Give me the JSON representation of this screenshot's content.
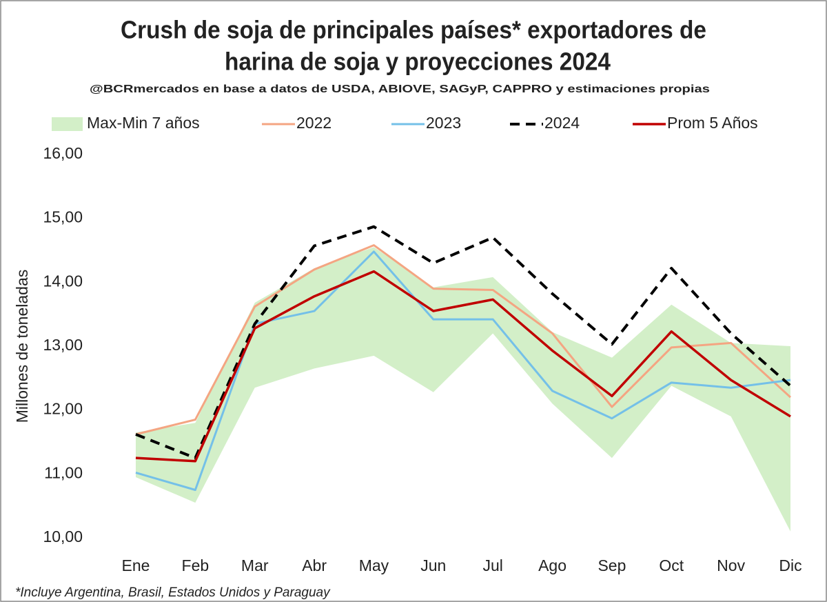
{
  "chart_data": {
    "type": "line",
    "title": [
      "Crush de soja de principales países* exportadores de",
      "harina de soja y proyecciones 2024"
    ],
    "subtitle": "@BCRmercados en base a datos de USDA, ABIOVE, SAGyP, CAPPRO y estimaciones propias",
    "y_label": "Millones de toneladas",
    "footnote": "*Incluye Argentina, Brasil, Estados Unidos y Paraguay",
    "categories": [
      "Ene",
      "Feb",
      "Mar",
      "Abr",
      "May",
      "Jun",
      "Jul",
      "Ago",
      "Sep",
      "Oct",
      "Nov",
      "Dic"
    ],
    "band": {
      "name": "Max-Min 7 años",
      "color": "#d3efc8",
      "upper": [
        11.65,
        11.8,
        13.68,
        14.22,
        14.55,
        13.92,
        14.08,
        13.22,
        12.82,
        13.65,
        13.05,
        13.0
      ],
      "lower": [
        10.95,
        10.55,
        12.35,
        12.65,
        12.85,
        12.28,
        13.2,
        12.1,
        11.25,
        12.38,
        11.9,
        10.1
      ]
    },
    "series": [
      {
        "name": "2022",
        "color": "#f4a582",
        "width": 3,
        "dashed": false,
        "values": [
          11.62,
          11.85,
          13.62,
          14.2,
          14.58,
          13.9,
          13.88,
          13.2,
          12.05,
          12.98,
          13.05,
          12.2
        ]
      },
      {
        "name": "2023",
        "color": "#74c0e8",
        "width": 3,
        "dashed": false,
        "values": [
          11.02,
          10.75,
          13.35,
          13.55,
          14.48,
          13.42,
          13.42,
          12.3,
          11.87,
          12.43,
          12.35,
          12.47
        ]
      },
      {
        "name": "2024",
        "color": "#000000",
        "width": 4,
        "dashed": true,
        "values": [
          11.62,
          11.25,
          13.35,
          14.57,
          14.87,
          14.3,
          14.7,
          13.82,
          13.03,
          14.22,
          13.2,
          12.38
        ]
      },
      {
        "name": "Prom 5 Años",
        "color": "#c00000",
        "width": 3.5,
        "dashed": false,
        "values": [
          11.25,
          11.2,
          13.28,
          13.78,
          14.17,
          13.55,
          13.73,
          12.93,
          12.22,
          13.23,
          12.47,
          11.9
        ]
      }
    ],
    "ylim": [
      10,
      16
    ],
    "yticks": [
      {
        "value": 10,
        "label": "10,00"
      },
      {
        "value": 11,
        "label": "11,00"
      },
      {
        "value": 12,
        "label": "12,00"
      },
      {
        "value": 13,
        "label": "13,00"
      },
      {
        "value": 14,
        "label": "14,00"
      },
      {
        "value": 15,
        "label": "15,00"
      },
      {
        "value": 16,
        "label": "16,00"
      }
    ],
    "legend": "top"
  }
}
